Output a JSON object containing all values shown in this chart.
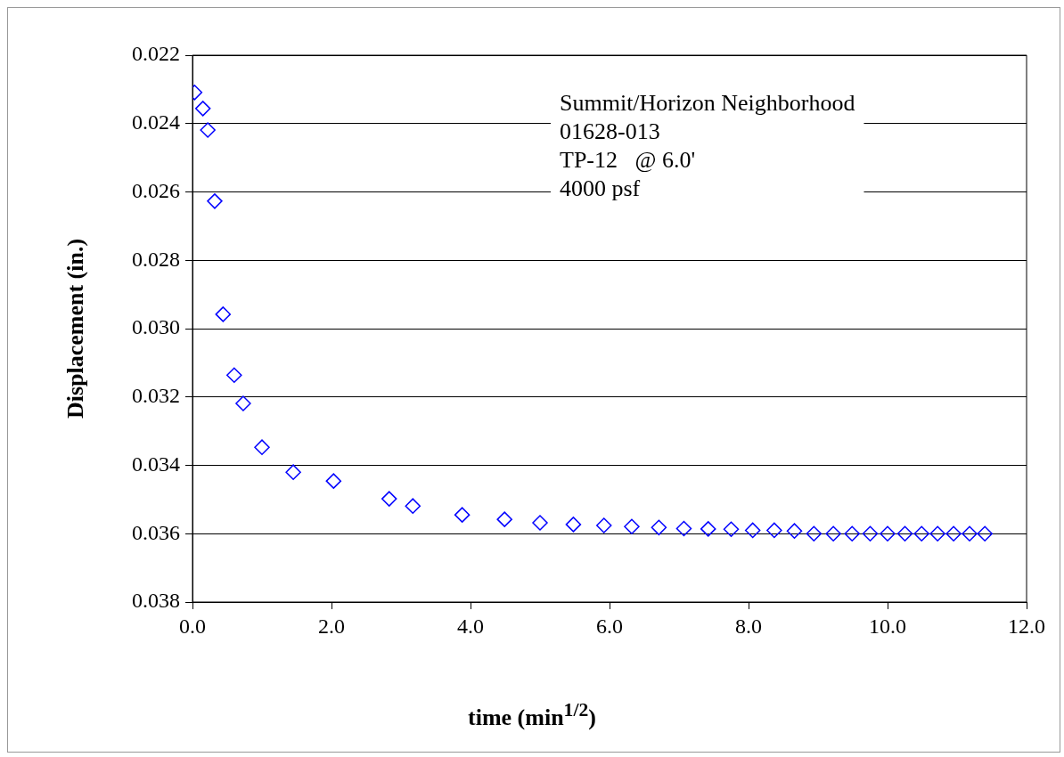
{
  "chart_data": {
    "type": "scatter",
    "xlabel": "time (min$^{1/2}$)",
    "ylabel": "Displacement (in.)",
    "annotations": [
      "Summit/Horizon Neighborhood",
      "01628-013",
      "TP-12   @ 6.0'",
      "4000 psf"
    ],
    "x": [
      0.03,
      0.15,
      0.22,
      0.32,
      0.44,
      0.6,
      0.73,
      1.0,
      1.45,
      2.03,
      2.83,
      3.17,
      3.88,
      4.49,
      5.0,
      5.48,
      5.92,
      6.32,
      6.71,
      7.07,
      7.42,
      7.75,
      8.06,
      8.37,
      8.66,
      8.94,
      9.22,
      9.49,
      9.75,
      10.0,
      10.25,
      10.49,
      10.72,
      10.95,
      11.18,
      11.4
    ],
    "series": [
      {
        "color": "#0000ff",
        "values": [
          0.02309,
          0.02356,
          0.02419,
          0.02627,
          0.02958,
          0.03136,
          0.03219,
          0.03347,
          0.0342,
          0.03446,
          0.03498,
          0.03519,
          0.03545,
          0.03558,
          0.03568,
          0.03573,
          0.03576,
          0.03579,
          0.03582,
          0.03585,
          0.03586,
          0.03587,
          0.0359,
          0.0359,
          0.03592,
          0.036,
          0.036,
          0.036,
          0.036,
          0.036,
          0.036,
          0.036,
          0.036,
          0.036,
          0.036,
          0.036
        ]
      }
    ],
    "xlim": [
      0,
      12
    ],
    "xticks": [
      {
        "value": 0,
        "label": "0.0"
      },
      {
        "value": 2,
        "label": "2.0"
      },
      {
        "value": 4,
        "label": "4.0"
      },
      {
        "value": 6,
        "label": "6.0"
      },
      {
        "value": 8,
        "label": "8.0"
      },
      {
        "value": 10,
        "label": "10.0"
      },
      {
        "value": 12,
        "label": "12.0"
      }
    ],
    "ylim": [
      0.038,
      0.022
    ],
    "yticks": [
      {
        "value": 0.022,
        "label": "0.022"
      },
      {
        "value": 0.024,
        "label": "0.024"
      },
      {
        "value": 0.026,
        "label": "0.026"
      },
      {
        "value": 0.028,
        "label": "0.028"
      },
      {
        "value": 0.03,
        "label": "0.030"
      },
      {
        "value": 0.032,
        "label": "0.032"
      },
      {
        "value": 0.034,
        "label": "0.034"
      },
      {
        "value": 0.036,
        "label": "0.036"
      },
      {
        "value": 0.038,
        "label": "0.038"
      }
    ],
    "grid": "y",
    "legend": false,
    "marker": "diamond"
  }
}
